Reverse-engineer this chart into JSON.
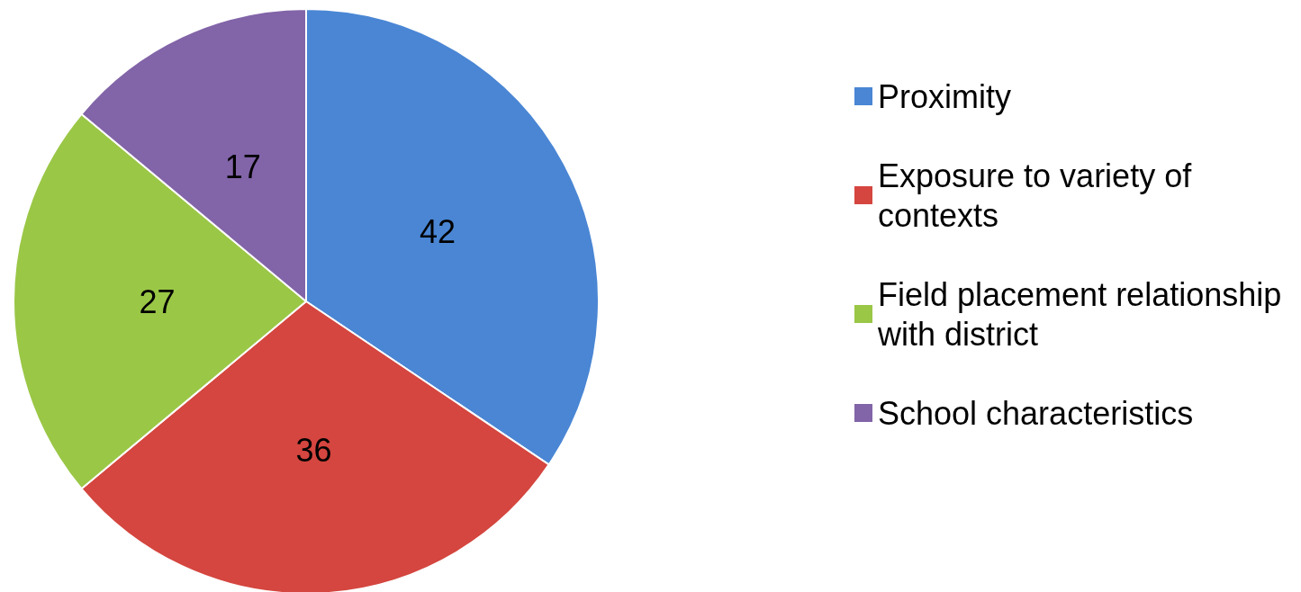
{
  "chart_data": {
    "type": "pie",
    "categories": [
      "Proximity",
      "Exposure to variety of contexts",
      "Field placement relationship with district",
      "School characteristics"
    ],
    "values": [
      42,
      36,
      27,
      17
    ],
    "colors": [
      "#4a86d4",
      "#d4463f",
      "#9ac746",
      "#8264a8"
    ],
    "data_labels": true,
    "legend": "right"
  }
}
